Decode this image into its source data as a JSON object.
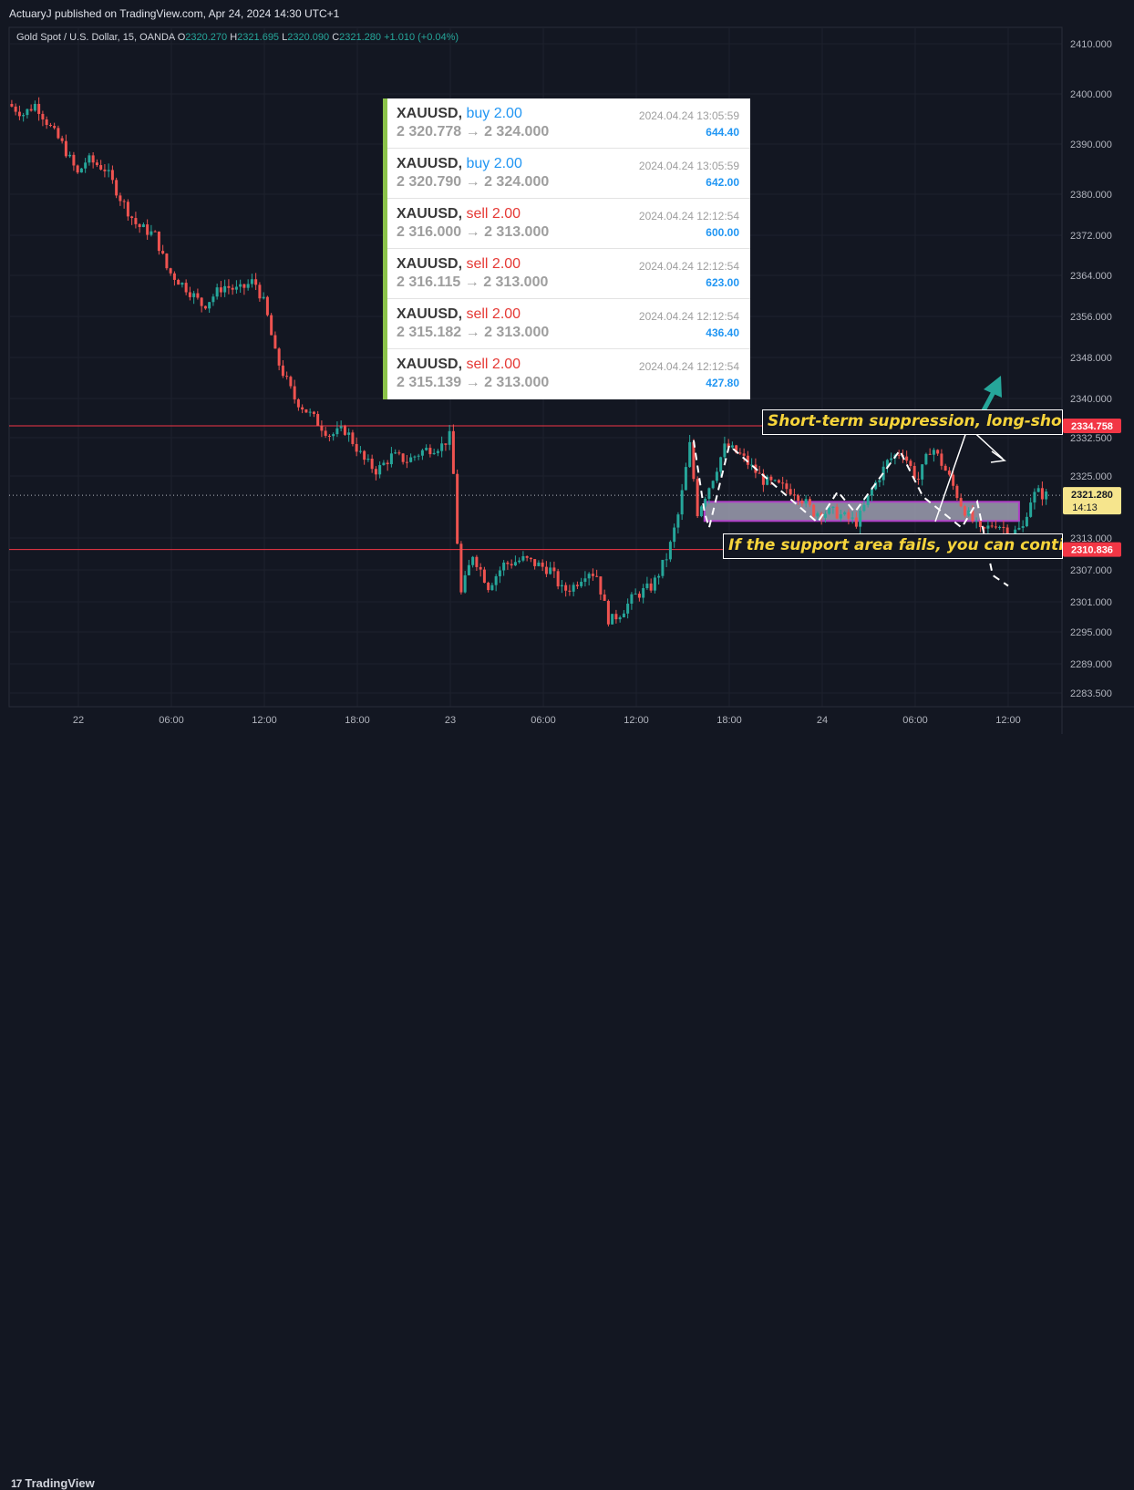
{
  "header": {
    "published": "ActuaryJ published on TradingView.com, Apr 24, 2024 14:30 UTC+1"
  },
  "legend": {
    "symbol": "Gold Spot / U.S. Dollar, 15, OANDA",
    "open": "2320.270",
    "high": "2321.695",
    "low": "2320.090",
    "close": "2321.280",
    "change": "+1.010 (+0.04%)"
  },
  "footer": {
    "brand": "TradingView"
  },
  "trades": [
    {
      "symbol": "XAUUSD,",
      "side": "buy 2.00",
      "prices": "2 320.778 → 2 324.000",
      "time": "2024.04.24 13:05:59",
      "profit": "644.40"
    },
    {
      "symbol": "XAUUSD,",
      "side": "buy 2.00",
      "prices": "2 320.790 → 2 324.000",
      "time": "2024.04.24 13:05:59",
      "profit": "642.00"
    },
    {
      "symbol": "XAUUSD,",
      "side": "sell 2.00",
      "prices": "2 316.000 → 2 313.000",
      "time": "2024.04.24 12:12:54",
      "profit": "600.00"
    },
    {
      "symbol": "XAUUSD,",
      "side": "sell 2.00",
      "prices": "2 316.115 → 2 313.000",
      "time": "2024.04.24 12:12:54",
      "profit": "623.00"
    },
    {
      "symbol": "XAUUSD,",
      "side": "sell 2.00",
      "prices": "2 315.182 → 2 313.000",
      "time": "2024.04.24 12:12:54",
      "profit": "436.40"
    },
    {
      "symbol": "XAUUSD,",
      "side": "sell 2.00",
      "prices": "2 315.139 → 2 313.000",
      "time": "2024.04.24 12:12:54",
      "profit": "427.80"
    }
  ],
  "annotations": {
    "top": "Short-term suppression, long-short c",
    "bottom": "If the support area fails, you can continu"
  },
  "price_labels": {
    "resistance": "2334.758",
    "current": "2321.280",
    "countdown": "14:13",
    "support": "2310.836"
  },
  "chart_data": {
    "type": "candlestick",
    "symbol": "XAUUSD",
    "timeframe": "15",
    "y_ticks": [
      {
        "label": "2410.000",
        "value": 2410
      },
      {
        "label": "2400.000",
        "value": 2400
      },
      {
        "label": "2390.000",
        "value": 2390
      },
      {
        "label": "2380.000",
        "value": 2380
      },
      {
        "label": "2372.000",
        "value": 2372
      },
      {
        "label": "2364.000",
        "value": 2364
      },
      {
        "label": "2356.000",
        "value": 2356
      },
      {
        "label": "2348.000",
        "value": 2348
      },
      {
        "label": "2340.000",
        "value": 2340
      },
      {
        "label": "2332.500",
        "value": 2332.5
      },
      {
        "label": "2325.000",
        "value": 2325
      },
      {
        "label": "2313.000",
        "value": 2313
      },
      {
        "label": "2307.000",
        "value": 2307
      },
      {
        "label": "2301.000",
        "value": 2301
      },
      {
        "label": "2295.000",
        "value": 2295
      },
      {
        "label": "2289.000",
        "value": 2289
      },
      {
        "label": "2283.500",
        "value": 2283.5
      }
    ],
    "x_ticks": [
      {
        "label": "22",
        "hour": 0
      },
      {
        "label": "06:00",
        "hour": 6
      },
      {
        "label": "12:00",
        "hour": 12
      },
      {
        "label": "18:00",
        "hour": 18
      },
      {
        "label": "23",
        "hour": 24
      },
      {
        "label": "06:00",
        "hour": 30
      },
      {
        "label": "12:00",
        "hour": 36
      },
      {
        "label": "18:00",
        "hour": 42
      },
      {
        "label": "24",
        "hour": 48
      },
      {
        "label": "06:00",
        "hour": 54
      },
      {
        "label": "12:00",
        "hour": 60
      }
    ],
    "x_start_hour": -4.3,
    "resistance_level": 2334.758,
    "support_level": 2310.836,
    "current_price": 2321.28,
    "support_zone": {
      "from_hour": 40.4,
      "to_hour": 60.7,
      "high": 2320,
      "low": 2316.3
    },
    "colors": {
      "up": "#26a69a",
      "down": "#ef5350",
      "level": "#f23645",
      "zone_fill": "#9e9eb0",
      "zone_border": "#b040c8"
    },
    "price_path": [
      [
        -4.3,
        2398
      ],
      [
        -3.3,
        2396
      ],
      [
        -2.5,
        2398
      ],
      [
        -1.5,
        2393
      ],
      [
        -0.8,
        2390
      ],
      [
        0.2,
        2384
      ],
      [
        0.8,
        2387
      ],
      [
        2,
        2385
      ],
      [
        3,
        2379
      ],
      [
        4,
        2374
      ],
      [
        5.2,
        2372
      ],
      [
        6,
        2365
      ],
      [
        7.4,
        2361
      ],
      [
        8.3,
        2358
      ],
      [
        9.6,
        2362
      ],
      [
        10.6,
        2361
      ],
      [
        11.6,
        2363
      ],
      [
        12.3,
        2358
      ],
      [
        13,
        2348
      ],
      [
        14.2,
        2340
      ],
      [
        15.5,
        2336
      ],
      [
        16.5,
        2333
      ],
      [
        17.5,
        2334
      ],
      [
        18.7,
        2328
      ],
      [
        19.5,
        2326
      ],
      [
        20.5,
        2329
      ],
      [
        21.5,
        2328
      ],
      [
        22.5,
        2330
      ],
      [
        23.7,
        2331
      ],
      [
        24.3,
        2333
      ],
      [
        24.9,
        2302
      ],
      [
        25.7,
        2310
      ],
      [
        26.7,
        2304
      ],
      [
        27.7,
        2308
      ],
      [
        29,
        2309
      ],
      [
        30.7,
        2307
      ],
      [
        31.5,
        2303
      ],
      [
        32.2,
        2304
      ],
      [
        33.1,
        2307
      ],
      [
        33.7,
        2306
      ],
      [
        34.5,
        2297
      ],
      [
        35.3,
        2299
      ],
      [
        36.1,
        2302
      ],
      [
        37.3,
        2304
      ],
      [
        38.3,
        2310
      ],
      [
        39,
        2318
      ],
      [
        39.7,
        2331
      ],
      [
        40.2,
        2318
      ],
      [
        41.1,
        2324
      ],
      [
        42,
        2331
      ],
      [
        43,
        2329
      ],
      [
        44.5,
        2324
      ],
      [
        46.5,
        2322
      ],
      [
        47.7,
        2318
      ],
      [
        49,
        2318
      ],
      [
        50.5,
        2316
      ],
      [
        51.4,
        2322
      ],
      [
        52.5,
        2328
      ],
      [
        53.4,
        2330
      ],
      [
        54.4,
        2324
      ],
      [
        55.3,
        2331
      ],
      [
        56.4,
        2325
      ],
      [
        57.3,
        2319
      ],
      [
        58.5,
        2314
      ],
      [
        59.4,
        2316
      ],
      [
        60.5,
        2314
      ],
      [
        61.2,
        2315
      ],
      [
        61.6,
        2320
      ],
      [
        62.1,
        2322
      ],
      [
        62.5,
        2321.28
      ]
    ],
    "wave_path": [
      [
        39.7,
        2332
      ],
      [
        40.4,
        2318
      ],
      [
        40.7,
        2315
      ],
      [
        42,
        2331
      ],
      [
        45,
        2323
      ],
      [
        47.7,
        2316
      ],
      [
        49,
        2322
      ],
      [
        50.1,
        2318
      ],
      [
        53,
        2330
      ],
      [
        54.5,
        2321
      ],
      [
        57,
        2315
      ],
      [
        58,
        2320
      ],
      [
        59,
        2306
      ],
      [
        60,
        2304
      ]
    ]
  }
}
